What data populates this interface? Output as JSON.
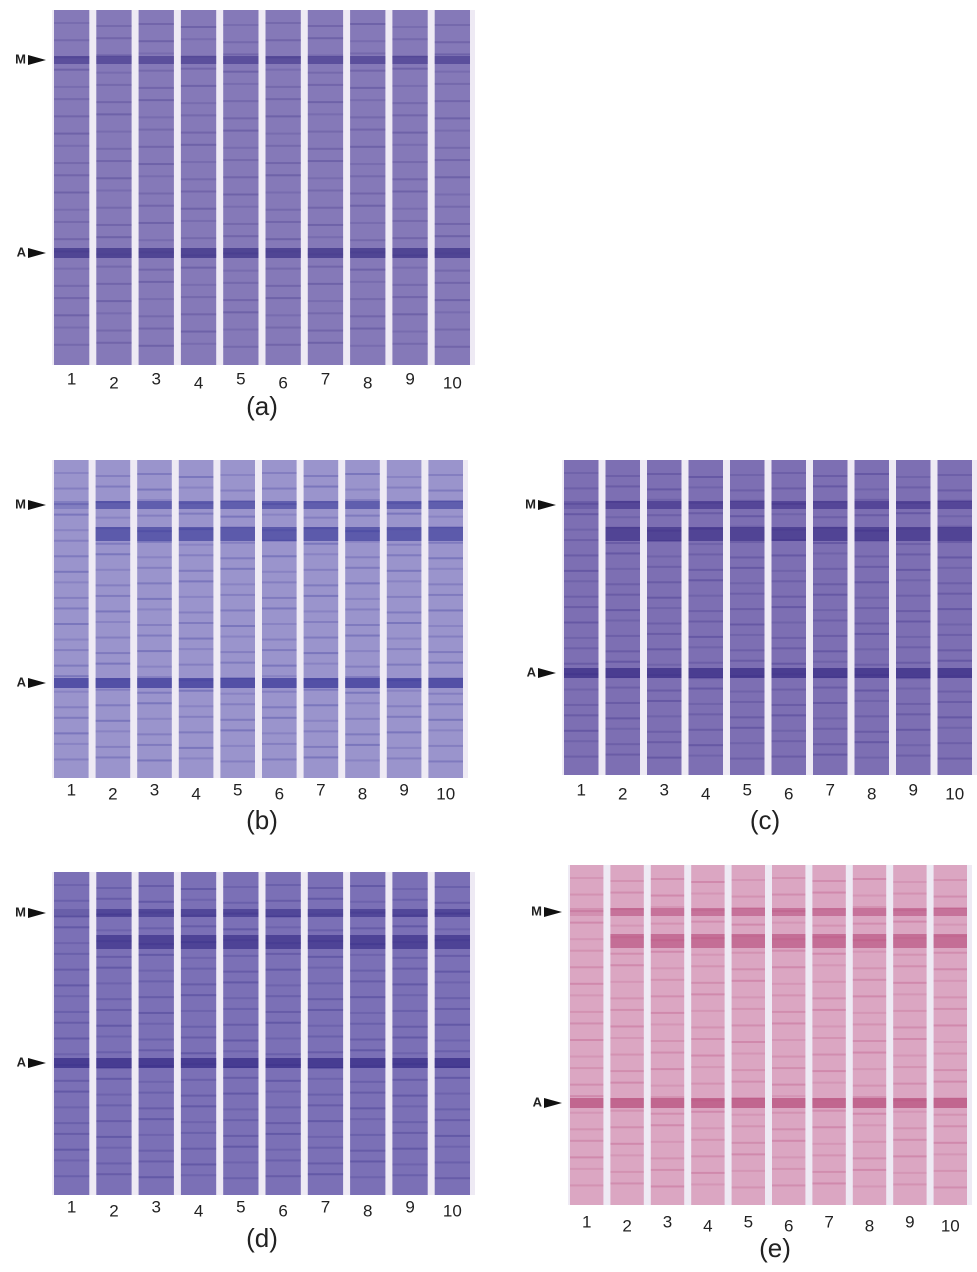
{
  "panels": [
    {
      "label": "(a)",
      "markers": [
        "M",
        "A"
      ],
      "lanes": [
        "1",
        "2",
        "3",
        "4",
        "5",
        "6",
        "7",
        "8",
        "9",
        "10"
      ]
    },
    {
      "label": "(b)",
      "markers": [
        "M",
        "A"
      ],
      "lanes": [
        "1",
        "2",
        "3",
        "4",
        "5",
        "6",
        "7",
        "8",
        "9",
        "10"
      ]
    },
    {
      "label": "(c)",
      "markers": [
        "M",
        "A"
      ],
      "lanes": [
        "1",
        "2",
        "3",
        "4",
        "5",
        "6",
        "7",
        "8",
        "9",
        "10"
      ]
    },
    {
      "label": "(d)",
      "markers": [
        "M",
        "A"
      ],
      "lanes": [
        "1",
        "2",
        "3",
        "4",
        "5",
        "6",
        "7",
        "8",
        "9",
        "10"
      ]
    },
    {
      "label": "(e)",
      "markers": [
        "M",
        "A"
      ],
      "lanes": [
        "1",
        "2",
        "3",
        "4",
        "5",
        "6",
        "7",
        "8",
        "9",
        "10"
      ]
    }
  ]
}
